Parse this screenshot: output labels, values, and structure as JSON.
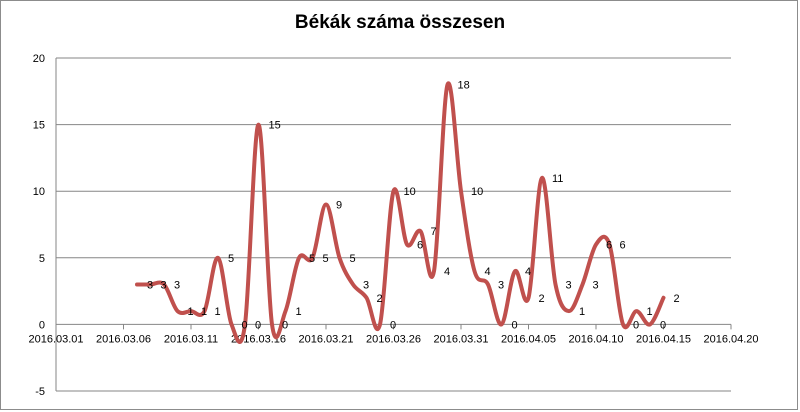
{
  "chart_data": {
    "type": "line",
    "title": "Békák száma összesen",
    "xlabel": "",
    "ylabel": "",
    "xlim": [
      "2016.03.01",
      "2016.04.20"
    ],
    "ylim": [
      -5,
      20
    ],
    "y_ticks": [
      "-5",
      "0",
      "5",
      "10",
      "15",
      "20"
    ],
    "x_ticks": [
      "2016.03.01",
      "2016.03.06",
      "2016.03.11",
      "2016.03.16",
      "2016.03.21",
      "2016.03.26",
      "2016.03.31",
      "2016.04.05",
      "2016.04.10",
      "2016.04.15",
      "2016.04.20"
    ],
    "grid": "horizontal",
    "smoothed": true,
    "data_labels": true,
    "line_color": "#c0504d",
    "series": [
      {
        "x": [
          "2016.03.07",
          "2016.03.08",
          "2016.03.09",
          "2016.03.10",
          "2016.03.11",
          "2016.03.12",
          "2016.03.13",
          "2016.03.14",
          "2016.03.15",
          "2016.03.16",
          "2016.03.17",
          "2016.03.18",
          "2016.03.19",
          "2016.03.20",
          "2016.03.21",
          "2016.03.22",
          "2016.03.23",
          "2016.03.24",
          "2016.03.25",
          "2016.03.26",
          "2016.03.27",
          "2016.03.28",
          "2016.03.29",
          "2016.03.30",
          "2016.03.31",
          "2016.04.01",
          "2016.04.02",
          "2016.04.03",
          "2016.04.04",
          "2016.04.05",
          "2016.04.06",
          "2016.04.07",
          "2016.04.08",
          "2016.04.09",
          "2016.04.10",
          "2016.04.11",
          "2016.04.12",
          "2016.04.13",
          "2016.04.14",
          "2016.04.15"
        ],
        "y": [
          3,
          3,
          3,
          1,
          1,
          1,
          5,
          0,
          0,
          15,
          0,
          1,
          5,
          5,
          9,
          5,
          3,
          2,
          0,
          10,
          6,
          7,
          4,
          18,
          10,
          4,
          3,
          0,
          4,
          2,
          11,
          3,
          1,
          3,
          6,
          6,
          0,
          1,
          0,
          2
        ],
        "labels": [
          "3",
          "3",
          "3",
          "1",
          "1",
          "1",
          "5",
          "0",
          "0",
          "15",
          "0",
          "1",
          "5",
          "5",
          "9",
          "5",
          "3",
          "2",
          "0",
          "10",
          "6",
          "7",
          "4",
          "18",
          "10",
          "4",
          "3",
          "0",
          "4",
          "2",
          "11",
          "3",
          "1",
          "3",
          "6",
          "6",
          "0",
          "1",
          "0",
          "2"
        ]
      }
    ]
  }
}
